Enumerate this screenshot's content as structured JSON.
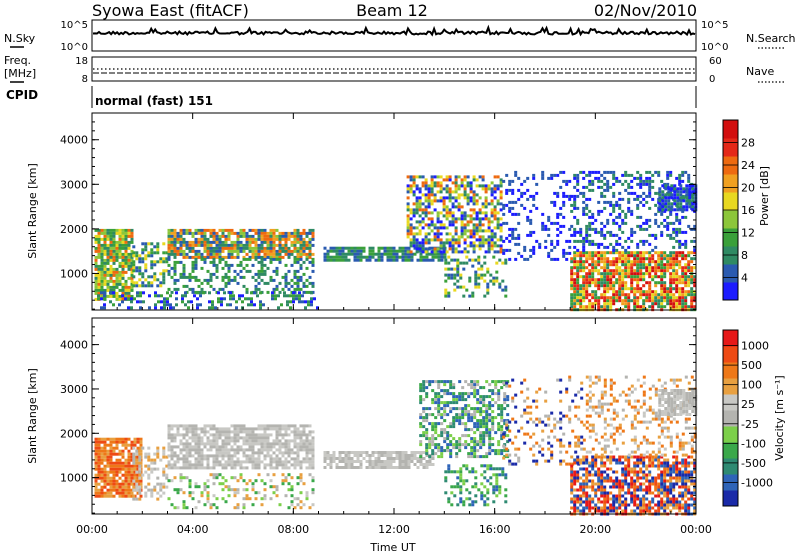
{
  "header": {
    "title_left": "Syowa East (fitACF)",
    "title_center": "Beam 12",
    "title_right": "02/Nov/2010"
  },
  "top_panel": {
    "left_label": "N.Sky",
    "left_ticks": [
      "10^5",
      "10^0"
    ],
    "right_label": "N.Search",
    "right_ticks": [
      "10^5",
      "10^0"
    ]
  },
  "freq_panel": {
    "left_label_1": "Freq.",
    "left_label_2": "[MHz]",
    "left_ticks": [
      "18",
      "8"
    ],
    "right_label": "Nave",
    "right_ticks": [
      "60",
      "0"
    ]
  },
  "cpid_panel": {
    "label": "CPID",
    "text": "normal (fast) 151"
  },
  "x_axis": {
    "label": "Time UT",
    "ticks": [
      "00:00",
      "04:00",
      "08:00",
      "12:00",
      "16:00",
      "20:00",
      "00:00"
    ]
  },
  "chart_data": [
    {
      "type": "heatmap",
      "name": "power",
      "ylabel": "Slant Range [km]",
      "yticks": [
        1000,
        2000,
        3000,
        4000
      ],
      "ylim": [
        180,
        4600
      ],
      "xlim": [
        0,
        24
      ],
      "colorbar": {
        "label": "Power [dB]",
        "ticks": [
          "4",
          "8",
          "12",
          "16",
          "20",
          "24",
          "28"
        ],
        "colors": [
          "#1c1cff",
          "#2a5ab0",
          "#2f8a63",
          "#3aa03a",
          "#8cc63a",
          "#e8d820",
          "#f0a020",
          "#ee6a10",
          "#e42818",
          "#d20e0e"
        ]
      },
      "regions": [
        {
          "t0": 0.1,
          "t1": 1.6,
          "r0": 450,
          "r1": 2000,
          "levels": [
            2,
            3,
            4,
            5,
            7
          ],
          "density": 0.85
        },
        {
          "t0": 1.6,
          "t1": 3.0,
          "r0": 700,
          "r1": 1700,
          "levels": [
            1,
            2,
            3,
            5
          ],
          "density": 0.55
        },
        {
          "t0": 3.0,
          "t1": 8.8,
          "r0": 1350,
          "r1": 2000,
          "levels": [
            1,
            2,
            4,
            6,
            7
          ],
          "density": 0.8
        },
        {
          "t0": 3.0,
          "t1": 8.8,
          "r0": 600,
          "r1": 1350,
          "levels": [
            1,
            2,
            3
          ],
          "density": 0.4
        },
        {
          "t0": 0.2,
          "t1": 9.0,
          "r0": 200,
          "r1": 600,
          "levels": [
            0,
            1,
            2,
            3
          ],
          "density": 0.35
        },
        {
          "t0": 9.2,
          "t1": 14.0,
          "r0": 1300,
          "r1": 1600,
          "levels": [
            1,
            2,
            3
          ],
          "density": 0.8
        },
        {
          "t0": 12.5,
          "t1": 16.3,
          "r0": 1500,
          "r1": 3200,
          "levels": [
            0,
            1,
            2,
            4,
            5,
            7
          ],
          "density": 0.6
        },
        {
          "t0": 14.0,
          "t1": 16.5,
          "r0": 500,
          "r1": 1400,
          "levels": [
            1,
            2,
            3,
            5
          ],
          "density": 0.35
        },
        {
          "t0": 16.3,
          "t1": 19.0,
          "r0": 1300,
          "r1": 3300,
          "levels": [
            0,
            1
          ],
          "density": 0.22
        },
        {
          "t0": 19.0,
          "t1": 24.0,
          "r0": 200,
          "r1": 1500,
          "levels": [
            2,
            3,
            5,
            6,
            7,
            8,
            9
          ],
          "density": 0.8
        },
        {
          "t0": 19.0,
          "t1": 24.0,
          "r0": 1500,
          "r1": 3300,
          "levels": [
            0,
            1,
            2
          ],
          "density": 0.35
        },
        {
          "t0": 22.5,
          "t1": 24.0,
          "r0": 2400,
          "r1": 3000,
          "levels": [
            0,
            1,
            2
          ],
          "density": 0.9
        }
      ]
    },
    {
      "type": "heatmap",
      "name": "velocity",
      "ylabel": "Slant Range [km]",
      "yticks": [
        1000,
        2000,
        3000,
        4000
      ],
      "ylim": [
        180,
        4600
      ],
      "xlim": [
        0,
        24
      ],
      "colorbar": {
        "label": "Velocity [m s⁻¹]",
        "ticks": [
          "1000",
          "500",
          "100",
          "25",
          "-25",
          "-100",
          "-500",
          "-1000"
        ],
        "colors": [
          "#1a2aa8",
          "#2e64b8",
          "#2e8a72",
          "#3aa84a",
          "#7ccf4a",
          "#b4b4b0",
          "#c8c8c4",
          "#e8a040",
          "#ee7818",
          "#ee4a14",
          "#e61818"
        ]
      },
      "regions": [
        {
          "t0": 0.1,
          "t1": 2.0,
          "r0": 600,
          "r1": 1900,
          "levels": [
            7,
            8,
            9
          ],
          "density": 0.85
        },
        {
          "t0": 1.6,
          "t1": 3.0,
          "r0": 500,
          "r1": 1700,
          "levels": [
            5,
            6,
            7
          ],
          "density": 0.35
        },
        {
          "t0": 3.0,
          "t1": 8.8,
          "r0": 1200,
          "r1": 2200,
          "levels": [
            5,
            6
          ],
          "density": 0.75
        },
        {
          "t0": 3.0,
          "t1": 8.8,
          "r0": 300,
          "r1": 1100,
          "levels": [
            3,
            4,
            5,
            6,
            7
          ],
          "density": 0.3
        },
        {
          "t0": 9.2,
          "t1": 13.5,
          "r0": 1250,
          "r1": 1600,
          "levels": [
            5,
            6
          ],
          "density": 0.8
        },
        {
          "t0": 13.0,
          "t1": 16.5,
          "r0": 1500,
          "r1": 3200,
          "levels": [
            1,
            2,
            3,
            4,
            5
          ],
          "density": 0.55
        },
        {
          "t0": 14.0,
          "t1": 16.5,
          "r0": 400,
          "r1": 1300,
          "levels": [
            2,
            3,
            4,
            1
          ],
          "density": 0.4
        },
        {
          "t0": 16.3,
          "t1": 19.5,
          "r0": 1300,
          "r1": 3300,
          "levels": [
            0,
            7,
            8,
            5
          ],
          "density": 0.2
        },
        {
          "t0": 19.0,
          "t1": 24.0,
          "r0": 200,
          "r1": 1500,
          "levels": [
            0,
            1,
            7,
            8,
            9,
            10
          ],
          "density": 0.7
        },
        {
          "t0": 19.5,
          "t1": 24.0,
          "r0": 1500,
          "r1": 3300,
          "levels": [
            5,
            6,
            7,
            8
          ],
          "density": 0.3
        },
        {
          "t0": 22.5,
          "t1": 24.0,
          "r0": 2400,
          "r1": 3000,
          "levels": [
            5,
            6
          ],
          "density": 0.85
        }
      ]
    }
  ]
}
